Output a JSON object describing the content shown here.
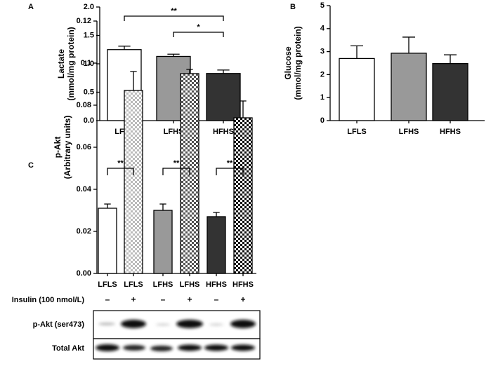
{
  "chart_data": [
    {
      "type": "bar",
      "panel": "A",
      "ylabel": [
        "Lactate",
        "(mmol/mg protein)"
      ],
      "categories": [
        "LFLS",
        "LFHS",
        "HFHS"
      ],
      "values": [
        1.25,
        1.13,
        0.83
      ],
      "errors": [
        0.06,
        0.04,
        0.06
      ],
      "colors": [
        "#ffffff",
        "#999999",
        "#333333"
      ],
      "ylim": [
        0,
        2
      ],
      "yticks": [
        {
          "value": 0,
          "label": "0.0"
        },
        0.5,
        {
          "value": 1,
          "label": "1.0"
        },
        1.5,
        {
          "value": 2,
          "label": "2.0"
        }
      ],
      "annotations": [
        "**",
        "*"
      ]
    },
    {
      "type": "bar",
      "panel": "B",
      "ylabel": [
        "Glucose",
        "(mmol/mg protein)"
      ],
      "categories": [
        "LFLS",
        "LFHS",
        "HFHS"
      ],
      "values": [
        2.7,
        2.93,
        2.48
      ],
      "errors": [
        0.55,
        0.7,
        0.38
      ],
      "colors": [
        "#ffffff",
        "#999999",
        "#333333"
      ],
      "ylim": [
        0,
        5
      ],
      "yticks": [
        0,
        1,
        2,
        3,
        4,
        5
      ]
    },
    {
      "type": "bar",
      "panel": "C",
      "ylabel": [
        "p-Akt",
        "(Arbitrary units)"
      ],
      "categories": [
        "LFLS",
        "LFLS",
        "LFHS",
        "LFHS",
        "HFHS",
        "HFHS"
      ],
      "values": [
        0.031,
        0.087,
        0.03,
        0.095,
        0.027,
        0.074
      ],
      "errors": [
        0.002,
        0.009,
        0.003,
        0.002,
        0.002,
        0.008
      ],
      "colors": [
        "#ffffff",
        "#bbbbbb",
        "#999999",
        "#555555",
        "#333333",
        "#111111"
      ],
      "hatched": [
        false,
        true,
        false,
        true,
        false,
        true
      ],
      "ylim": [
        0,
        0.12
      ],
      "yticks": [
        {
          "value": 0,
          "label": "0.00"
        },
        0.02,
        0.04,
        0.06,
        0.08,
        0.1,
        0.12
      ],
      "annotations": [
        "**",
        "**",
        "**"
      ]
    }
  ],
  "blot": {
    "insulin_label": "Insulin (100 nmol/L)",
    "insulin_signs": [
      "–",
      "+",
      "–",
      "+",
      "–",
      "+"
    ],
    "rows": [
      "p-Akt (ser473)",
      "Total Akt"
    ]
  }
}
